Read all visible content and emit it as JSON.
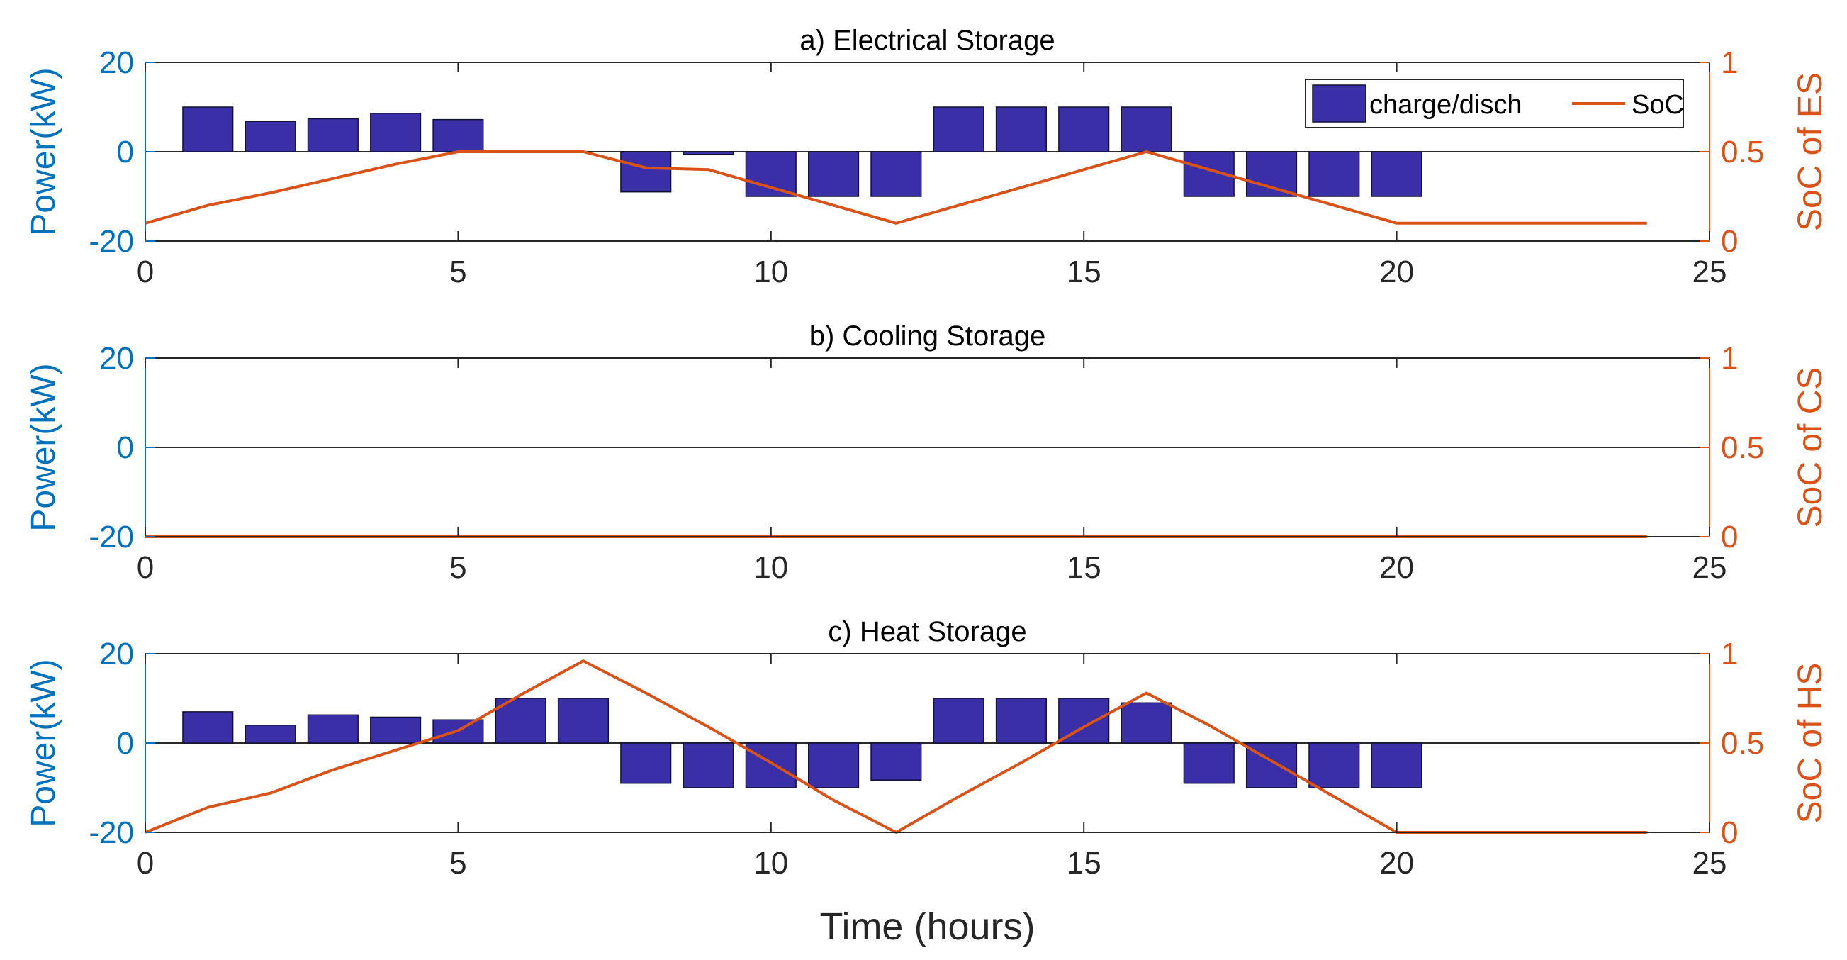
{
  "chart_data": [
    {
      "type": "bar",
      "title": "a) Electrical Storage",
      "xlabel": "",
      "ylabel": "Power(kW)",
      "y2label": "SoC of ES",
      "xlim": [
        0,
        25
      ],
      "ylim": [
        -20,
        20
      ],
      "y2lim": [
        0,
        1
      ],
      "xticks": [
        0,
        5,
        10,
        15,
        20,
        25
      ],
      "yticks": [
        -20,
        0,
        20
      ],
      "y2ticks": [
        0,
        0.5,
        1
      ],
      "bar_x": [
        1,
        2,
        3,
        4,
        5,
        6,
        7,
        8,
        9,
        10,
        11,
        12,
        13,
        14,
        15,
        16,
        17,
        18,
        19,
        20
      ],
      "series": [
        {
          "name": "charge/disch",
          "kind": "bar",
          "axis": "left",
          "color": "#3A2FA6",
          "values": [
            10,
            6.8,
            7.4,
            8.6,
            7.2,
            0,
            0,
            -9,
            -0.6,
            -10,
            -10,
            -10,
            10,
            10,
            10,
            10,
            -10,
            -10,
            -10,
            -10
          ]
        },
        {
          "name": "SoC",
          "kind": "line",
          "axis": "right",
          "color": "#D95319",
          "x": [
            0,
            1,
            2,
            3,
            4,
            5,
            6,
            7,
            8,
            9,
            10,
            11,
            12,
            13,
            14,
            15,
            16,
            17,
            18,
            19,
            20,
            21,
            22,
            23,
            24
          ],
          "values": [
            0.1,
            0.2,
            0.27,
            0.35,
            0.43,
            0.5,
            0.5,
            0.5,
            0.41,
            0.4,
            0.3,
            0.2,
            0.1,
            0.2,
            0.3,
            0.4,
            0.5,
            0.4,
            0.3,
            0.2,
            0.1,
            0.1,
            0.1,
            0.1,
            0.1
          ]
        }
      ],
      "legend": {
        "location": "top-right",
        "entries": [
          "charge/disch",
          "SoC"
        ]
      }
    },
    {
      "type": "bar",
      "title": "b) Cooling Storage",
      "xlabel": "",
      "ylabel": "Power(kW)",
      "y2label": "SoC of CS",
      "xlim": [
        0,
        25
      ],
      "ylim": [
        -20,
        20
      ],
      "y2lim": [
        0,
        1
      ],
      "xticks": [
        0,
        5,
        10,
        15,
        20,
        25
      ],
      "yticks": [
        -20,
        0,
        20
      ],
      "y2ticks": [
        0,
        0.5,
        1
      ],
      "bar_x": [
        1,
        2,
        3,
        4,
        5,
        6,
        7,
        8,
        9,
        10,
        11,
        12,
        13,
        14,
        15,
        16,
        17,
        18,
        19,
        20
      ],
      "series": [
        {
          "name": "charge/disch",
          "kind": "bar",
          "axis": "left",
          "color": "#3A2FA6",
          "values": [
            0,
            0,
            0,
            0,
            0,
            0,
            0,
            0,
            0,
            0,
            0,
            0,
            0,
            0,
            0,
            0,
            0,
            0,
            0,
            0
          ]
        },
        {
          "name": "SoC",
          "kind": "line",
          "axis": "right",
          "color": "#D95319",
          "x": [
            0,
            24
          ],
          "values": [
            0,
            0
          ]
        }
      ]
    },
    {
      "type": "bar",
      "title": "c) Heat Storage",
      "xlabel": "Time (hours)",
      "ylabel": "Power(kW)",
      "y2label": "SoC of HS",
      "xlim": [
        0,
        25
      ],
      "ylim": [
        -20,
        20
      ],
      "y2lim": [
        0,
        1
      ],
      "xticks": [
        0,
        5,
        10,
        15,
        20,
        25
      ],
      "yticks": [
        -20,
        0,
        20
      ],
      "y2ticks": [
        0,
        0.5,
        1
      ],
      "bar_x": [
        1,
        2,
        3,
        4,
        5,
        6,
        7,
        8,
        9,
        10,
        11,
        12,
        13,
        14,
        15,
        16,
        17,
        18,
        19,
        20
      ],
      "series": [
        {
          "name": "charge/disch",
          "kind": "bar",
          "axis": "left",
          "color": "#3A2FA6",
          "values": [
            7,
            4,
            6.3,
            5.8,
            5.2,
            10,
            10,
            -9,
            -10,
            -10,
            -10,
            -8.3,
            10,
            10,
            10,
            9,
            -9,
            -10,
            -10,
            -10
          ]
        },
        {
          "name": "SoC",
          "kind": "line",
          "axis": "right",
          "color": "#D95319",
          "x": [
            0,
            1,
            2,
            3,
            4,
            5,
            6,
            7,
            8,
            9,
            10,
            11,
            12,
            13,
            14,
            15,
            16,
            17,
            18,
            19,
            20,
            21,
            22,
            23,
            24
          ],
          "values": [
            0,
            0.14,
            0.22,
            0.35,
            0.46,
            0.57,
            0.77,
            0.96,
            0.78,
            0.59,
            0.39,
            0.18,
            0,
            0.2,
            0.39,
            0.59,
            0.78,
            0.6,
            0.4,
            0.2,
            0,
            0,
            0,
            0,
            0
          ]
        }
      ]
    }
  ]
}
